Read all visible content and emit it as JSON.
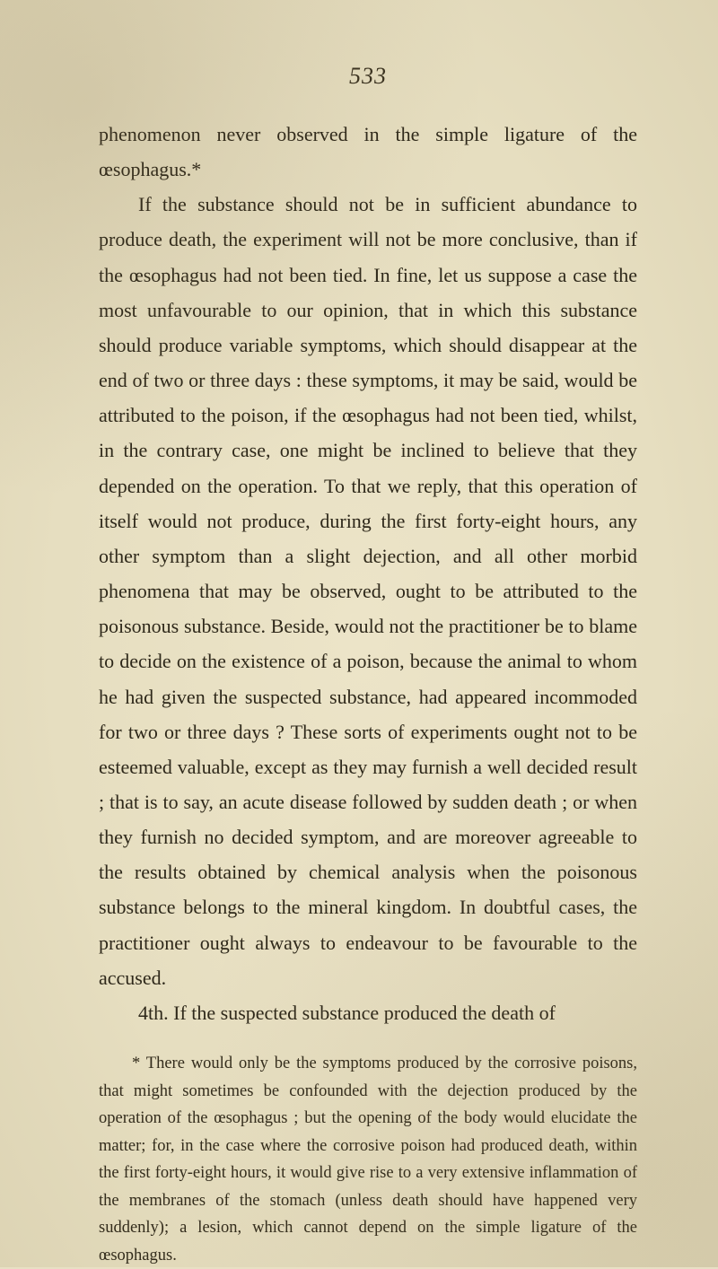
{
  "page_number": "533",
  "paragraphs": [
    "phenomenon never observed in the simple ligature of the œsophagus.*",
    "If the substance should not be in sufficient abundance to produce death, the experiment will not be more conclusive, than if the œsophagus had not been tied. In fine, let us suppose a case the most unfavourable to our opinion, that in which this substance should produce variable symptoms, which should disappear at the end of two or three days : these symptoms, it may be said, would be attributed to the poison, if the œsophagus had not been tied, whilst, in the contrary case, one might be inclined to believe that they depended on the operation. To that we reply, that this operation of itself would not produce, during the first forty-eight hours, any other symptom than a slight dejection, and all other morbid phenomena that may be observed, ought to be attributed to the poisonous substance. Beside, would not the practitioner be to blame to decide on the existence of a poison, because the animal to whom he had given the suspected substance, had appeared incommoded for two or three days ? These sorts of experiments ought not to be esteemed valuable, except as they may furnish a well decided result ; that is to say, an acute disease followed by sudden death ; or when they furnish no decided symptom, and are moreover agreeable to the results obtained by chemical analysis when the poisonous substance belongs to the mineral kingdom. In doubtful cases, the practitioner ought always to endeavour to be favourable to the accused.",
    "4th. If the suspected substance produced the death of"
  ],
  "footnote": "* There would only be the symptoms produced by the corrosive poisons, that might sometimes be confounded with the dejection produced by the operation of the œsophagus ; but the opening of the body would elucidate the matter; for, in the case where the corrosive poison had produced death, within the first forty-eight hours, it would give rise to a very extensive inflammation of the membranes of the stomach (unless death should have happened very suddenly); a lesion, which cannot depend on the simple ligature of the œsophagus."
}
